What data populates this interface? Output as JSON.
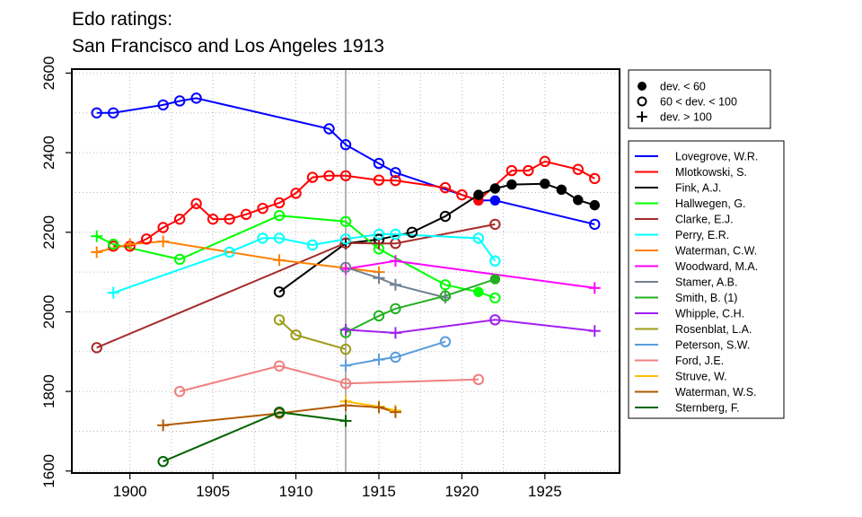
{
  "chart_data": {
    "type": "line",
    "title": [
      "Edo ratings:",
      "San Francisco and Los Angeles 1913"
    ],
    "xlabel": "",
    "ylabel": "",
    "xlim": [
      1896.5,
      1929.5
    ],
    "ylim": [
      1595,
      2610
    ],
    "xticks": [
      1900,
      1905,
      1910,
      1915,
      1920,
      1925
    ],
    "yticks": [
      1600,
      1800,
      2000,
      2200,
      2400,
      2600
    ],
    "grid": true,
    "reference_line_x": 1913,
    "marker_legend": [
      {
        "marker": "filled",
        "label": "dev. < 60"
      },
      {
        "marker": "open",
        "label": "60 < dev. < 100"
      },
      {
        "marker": "plus",
        "label": "dev. > 100"
      }
    ],
    "legend_position": "right",
    "series": [
      {
        "name": "Lovegrove, W.R.",
        "color": "#0000ff",
        "points": [
          [
            1898,
            2500,
            "o"
          ],
          [
            1899,
            2500,
            "o"
          ],
          [
            1902,
            2520,
            "o"
          ],
          [
            1903,
            2530,
            "o"
          ],
          [
            1904,
            2537,
            "o"
          ],
          [
            1912,
            2460,
            "o"
          ],
          [
            1913,
            2420,
            "o"
          ],
          [
            1915,
            2373,
            "o"
          ],
          [
            1916,
            2350,
            "o"
          ],
          [
            1921,
            2280,
            "f"
          ],
          [
            1922,
            2280,
            "f"
          ],
          [
            1928,
            2220,
            "o"
          ]
        ]
      },
      {
        "name": "Mlotkowski, S.",
        "color": "#ff0000",
        "points": [
          [
            1899,
            2165,
            "o"
          ],
          [
            1900,
            2165,
            "o"
          ],
          [
            1901,
            2183,
            "o"
          ],
          [
            1902,
            2212,
            "o"
          ],
          [
            1903,
            2233,
            "o"
          ],
          [
            1904,
            2272,
            "o"
          ],
          [
            1905,
            2233,
            "o"
          ],
          [
            1906,
            2233,
            "o"
          ],
          [
            1907,
            2245,
            "o"
          ],
          [
            1908,
            2260,
            "o"
          ],
          [
            1909,
            2274,
            "o"
          ],
          [
            1910,
            2298,
            "o"
          ],
          [
            1911,
            2338,
            "o"
          ],
          [
            1912,
            2342,
            "o"
          ],
          [
            1913,
            2342,
            "o"
          ],
          [
            1915,
            2331,
            "o"
          ],
          [
            1916,
            2330,
            "o"
          ],
          [
            1919,
            2312,
            "o"
          ],
          [
            1920,
            2294,
            "o"
          ],
          [
            1921,
            2280,
            "f"
          ],
          [
            1923,
            2355,
            "o"
          ],
          [
            1924,
            2355,
            "o"
          ],
          [
            1925,
            2378,
            "o"
          ],
          [
            1927,
            2358,
            "o"
          ],
          [
            1928,
            2335,
            "o"
          ]
        ]
      },
      {
        "name": "Fink, A.J.",
        "color": "#000000",
        "points": [
          [
            1909,
            2050,
            "o"
          ],
          [
            1913,
            2172,
            "+"
          ],
          [
            1915,
            2182,
            "o"
          ],
          [
            1917,
            2200,
            "o"
          ],
          [
            1919,
            2240,
            "o"
          ],
          [
            1921,
            2294,
            "f"
          ],
          [
            1922,
            2310,
            "f"
          ],
          [
            1923,
            2320,
            "f"
          ],
          [
            1925,
            2322,
            "f"
          ],
          [
            1926,
            2307,
            "f"
          ],
          [
            1927,
            2281,
            "f"
          ],
          [
            1928,
            2268,
            "f"
          ]
        ]
      },
      {
        "name": "Hallwegen, G.",
        "color": "#00ff00",
        "points": [
          [
            1898,
            2190,
            "+"
          ],
          [
            1899,
            2170,
            "o"
          ],
          [
            1903,
            2132,
            "o"
          ],
          [
            1909,
            2242,
            "o"
          ],
          [
            1913,
            2227,
            "o"
          ],
          [
            1915,
            2158,
            "o"
          ],
          [
            1919,
            2068,
            "o"
          ],
          [
            1921,
            2050,
            "f"
          ],
          [
            1922,
            2035,
            "o"
          ]
        ]
      },
      {
        "name": "Clarke, E.J.",
        "color": "#a52a2a",
        "points": [
          [
            1898,
            1910,
            "o"
          ],
          [
            1913,
            2173,
            "o"
          ],
          [
            1915,
            2172,
            "+"
          ],
          [
            1916,
            2172,
            "o"
          ],
          [
            1922,
            2220,
            "o"
          ]
        ]
      },
      {
        "name": "Perry, E.R.",
        "color": "#00ffff",
        "points": [
          [
            1899,
            2048,
            "+"
          ],
          [
            1906,
            2150,
            "o"
          ],
          [
            1908,
            2185,
            "o"
          ],
          [
            1909,
            2185,
            "o"
          ],
          [
            1911,
            2168,
            "o"
          ],
          [
            1913,
            2183,
            "o"
          ],
          [
            1915,
            2195,
            "o"
          ],
          [
            1916,
            2195,
            "o"
          ],
          [
            1921,
            2185,
            "o"
          ],
          [
            1922,
            2128,
            "o"
          ]
        ]
      },
      {
        "name": "Waterman, C.W.",
        "color": "#ff7f00",
        "points": [
          [
            1898,
            2150,
            "+"
          ],
          [
            1900,
            2170,
            "+"
          ],
          [
            1902,
            2177,
            "+"
          ],
          [
            1909,
            2130,
            "+"
          ],
          [
            1915,
            2100,
            "+"
          ]
        ]
      },
      {
        "name": "Woodward, M.A.",
        "color": "#ff00ff",
        "points": [
          [
            1913,
            2108,
            "+"
          ],
          [
            1916,
            2128,
            "+"
          ],
          [
            1928,
            2060,
            "+"
          ]
        ]
      },
      {
        "name": "Stamer, A.B.",
        "color": "#708090",
        "points": [
          [
            1913,
            2112,
            "o"
          ],
          [
            1915,
            2085,
            "+"
          ],
          [
            1916,
            2068,
            "+"
          ],
          [
            1919,
            2036,
            "+"
          ]
        ]
      },
      {
        "name": "Smith, B. (1)",
        "color": "#22b022",
        "points": [
          [
            1913,
            1948,
            "o"
          ],
          [
            1915,
            1990,
            "o"
          ],
          [
            1916,
            2008,
            "o"
          ],
          [
            1919,
            2040,
            "o"
          ],
          [
            1922,
            2082,
            "f"
          ]
        ]
      },
      {
        "name": "Whipple, C.H.",
        "color": "#a020f0",
        "points": [
          [
            1913,
            1955,
            "+"
          ],
          [
            1916,
            1947,
            "+"
          ],
          [
            1922,
            1980,
            "o"
          ],
          [
            1928,
            1952,
            "+"
          ]
        ]
      },
      {
        "name": "Rosenblat, L.A.",
        "color": "#9c9c1a",
        "points": [
          [
            1909,
            1980,
            "o"
          ],
          [
            1910,
            1942,
            "o"
          ],
          [
            1913,
            1906,
            "o"
          ]
        ]
      },
      {
        "name": "Peterson, S.W.",
        "color": "#5a9cdc",
        "points": [
          [
            1913,
            1865,
            "+"
          ],
          [
            1915,
            1880,
            "+"
          ],
          [
            1916,
            1886,
            "o"
          ],
          [
            1919,
            1925,
            "o"
          ]
        ]
      },
      {
        "name": "Ford, J.E.",
        "color": "#f08080",
        "points": [
          [
            1903,
            1800,
            "o"
          ],
          [
            1909,
            1864,
            "o"
          ],
          [
            1913,
            1820,
            "o"
          ],
          [
            1921,
            1830,
            "o"
          ]
        ]
      },
      {
        "name": "Struve, W.",
        "color": "#ffc000",
        "points": [
          [
            1913,
            1775,
            "+"
          ],
          [
            1915,
            1762,
            "+"
          ],
          [
            1916,
            1752,
            "+"
          ]
        ]
      },
      {
        "name": "Waterman, W.S.",
        "color": "#b05a00",
        "points": [
          [
            1902,
            1715,
            "+"
          ],
          [
            1909,
            1745,
            "o"
          ],
          [
            1913,
            1765,
            "+"
          ],
          [
            1915,
            1760,
            "+"
          ],
          [
            1916,
            1748,
            "+"
          ]
        ]
      },
      {
        "name": "Sternberg, F.",
        "color": "#006400",
        "points": [
          [
            1902,
            1624,
            "o"
          ],
          [
            1909,
            1748,
            "o"
          ],
          [
            1913,
            1726,
            "+"
          ]
        ]
      }
    ]
  }
}
